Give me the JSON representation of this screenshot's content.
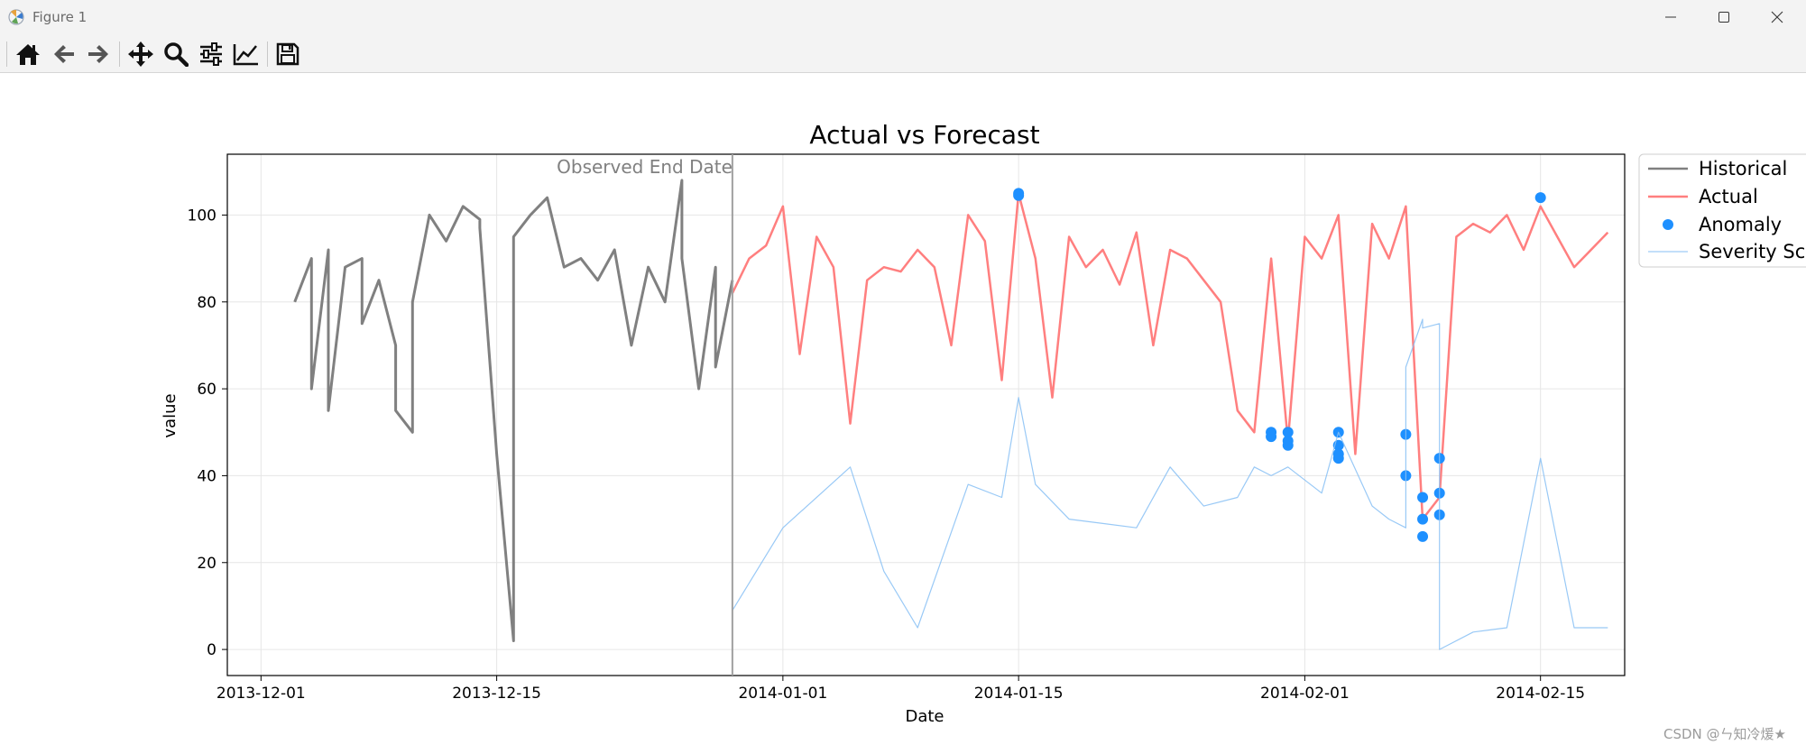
{
  "window": {
    "title": "Figure 1",
    "controls": {
      "minimize": "minimize",
      "maximize": "maximize",
      "close": "close"
    }
  },
  "toolbar": {
    "buttons": [
      {
        "name": "home-icon",
        "tooltip": "Reset original view"
      },
      {
        "name": "back-icon",
        "tooltip": "Back to previous view"
      },
      {
        "name": "forward-icon",
        "tooltip": "Forward to next view"
      },
      {
        "name": "pan-icon",
        "tooltip": "Pan axes"
      },
      {
        "name": "zoom-icon",
        "tooltip": "Zoom to rectangle"
      },
      {
        "name": "configure-icon",
        "tooltip": "Configure subplots"
      },
      {
        "name": "edit-axis-icon",
        "tooltip": "Edit axis, curve and image parameters"
      },
      {
        "name": "save-icon",
        "tooltip": "Save the figure"
      }
    ]
  },
  "watermark": "CSDN @ㄣ知冷煖★",
  "colors": {
    "historical": "#808080",
    "actual": "#ff7f7f",
    "anomaly": "#1e90ff",
    "severity": "#87bff5",
    "endline": "#a0a0a0"
  },
  "chart_data": {
    "type": "line",
    "title": "Actual vs Forecast",
    "xlabel": "Date",
    "ylabel": "value",
    "xlim": [
      "2013-11-29",
      "2014-02-20"
    ],
    "ylim": [
      -6,
      114
    ],
    "xticks": [
      "2013-12-01",
      "2013-12-15",
      "2014-01-01",
      "2014-01-15",
      "2014-02-01",
      "2014-02-15"
    ],
    "yticks": [
      0,
      20,
      40,
      60,
      80,
      100
    ],
    "grid": true,
    "legend_position": "outside-top-right",
    "annotation": {
      "text": "Observed End Date",
      "x": "2013-12-29"
    },
    "series": [
      {
        "name": "Historical",
        "kind": "line",
        "color": "#808080",
        "x": [
          "2013-12-03",
          "2013-12-04",
          "2013-12-04",
          "2013-12-05",
          "2013-12-05",
          "2013-12-06",
          "2013-12-07",
          "2013-12-07",
          "2013-12-08",
          "2013-12-09",
          "2013-12-09",
          "2013-12-10",
          "2013-12-10",
          "2013-12-11",
          "2013-12-12",
          "2013-12-13",
          "2013-12-14",
          "2013-12-14",
          "2013-12-15",
          "2013-12-16",
          "2013-12-16",
          "2013-12-17",
          "2013-12-18",
          "2013-12-19",
          "2013-12-20",
          "2013-12-21",
          "2013-12-22",
          "2013-12-23",
          "2013-12-24",
          "2013-12-25",
          "2013-12-26",
          "2013-12-26",
          "2013-12-27",
          "2013-12-28",
          "2013-12-28",
          "2013-12-29"
        ],
        "y": [
          80,
          90,
          60,
          92,
          55,
          88,
          90,
          75,
          85,
          70,
          55,
          50,
          80,
          100,
          94,
          102,
          99,
          97,
          45,
          2,
          95,
          100,
          104,
          88,
          90,
          85,
          92,
          70,
          88,
          80,
          108,
          90,
          60,
          88,
          65,
          85
        ]
      },
      {
        "name": "Actual",
        "kind": "line",
        "color": "#ff7f7f",
        "x": [
          "2013-12-29",
          "2013-12-30",
          "2013-12-31",
          "2014-01-01",
          "2014-01-02",
          "2014-01-03",
          "2014-01-04",
          "2014-01-05",
          "2014-01-06",
          "2014-01-07",
          "2014-01-08",
          "2014-01-09",
          "2014-01-10",
          "2014-01-11",
          "2014-01-12",
          "2014-01-13",
          "2014-01-14",
          "2014-01-15",
          "2014-01-16",
          "2014-01-17",
          "2014-01-18",
          "2014-01-19",
          "2014-01-20",
          "2014-01-21",
          "2014-01-22",
          "2014-01-23",
          "2014-01-24",
          "2014-01-25",
          "2014-01-26",
          "2014-01-27",
          "2014-01-28",
          "2014-01-29",
          "2014-01-30",
          "2014-01-31",
          "2014-02-01",
          "2014-02-02",
          "2014-02-03",
          "2014-02-04",
          "2014-02-05",
          "2014-02-06",
          "2014-02-07",
          "2014-02-08",
          "2014-02-09",
          "2014-02-10",
          "2014-02-11",
          "2014-02-12",
          "2014-02-13",
          "2014-02-14",
          "2014-02-15",
          "2014-02-16",
          "2014-02-17",
          "2014-02-18",
          "2014-02-19"
        ],
        "y": [
          82,
          90,
          93,
          102,
          68,
          95,
          88,
          52,
          85,
          88,
          87,
          92,
          88,
          70,
          100,
          94,
          62,
          105,
          90,
          58,
          95,
          88,
          92,
          84,
          96,
          70,
          92,
          90,
          85,
          80,
          55,
          50,
          90,
          48,
          95,
          90,
          100,
          45,
          98,
          90,
          102,
          30,
          35,
          95,
          98,
          96,
          100,
          92,
          102,
          95,
          88,
          92,
          96
        ]
      },
      {
        "name": "Anomaly",
        "kind": "scatter",
        "color": "#1e90ff",
        "x": [
          "2014-01-15",
          "2014-01-15",
          "2014-01-30",
          "2014-01-30",
          "2014-01-31",
          "2014-01-31",
          "2014-01-31",
          "2014-02-03",
          "2014-02-03",
          "2014-02-03",
          "2014-02-03",
          "2014-02-07",
          "2014-02-07",
          "2014-02-08",
          "2014-02-08",
          "2014-02-08",
          "2014-02-09",
          "2014-02-09",
          "2014-02-09",
          "2014-02-15"
        ],
        "y": [
          105,
          104.5,
          50,
          49,
          50,
          48,
          47,
          50,
          47,
          45,
          44,
          49.5,
          40,
          30,
          26,
          35,
          36,
          31,
          44,
          104
        ]
      },
      {
        "name": "Severity Score",
        "kind": "line",
        "color": "#87bff5",
        "x": [
          "2013-12-29",
          "2014-01-01",
          "2014-01-05",
          "2014-01-07",
          "2014-01-09",
          "2014-01-12",
          "2014-01-14",
          "2014-01-15",
          "2014-01-16",
          "2014-01-18",
          "2014-01-20",
          "2014-01-22",
          "2014-01-24",
          "2014-01-26",
          "2014-01-28",
          "2014-01-29",
          "2014-01-30",
          "2014-01-31",
          "2014-02-02",
          "2014-02-03",
          "2014-02-05",
          "2014-02-06",
          "2014-02-07",
          "2014-02-07",
          "2014-02-08",
          "2014-02-08",
          "2014-02-09",
          "2014-02-09",
          "2014-02-11",
          "2014-02-13",
          "2014-02-15",
          "2014-02-17",
          "2014-02-19"
        ],
        "y": [
          9,
          28,
          42,
          18,
          5,
          38,
          35,
          58,
          38,
          30,
          29,
          28,
          42,
          33,
          35,
          42,
          40,
          42,
          36,
          50,
          33,
          30,
          28,
          65,
          76,
          74,
          75,
          0,
          4,
          5,
          44,
          5,
          5
        ]
      }
    ]
  }
}
